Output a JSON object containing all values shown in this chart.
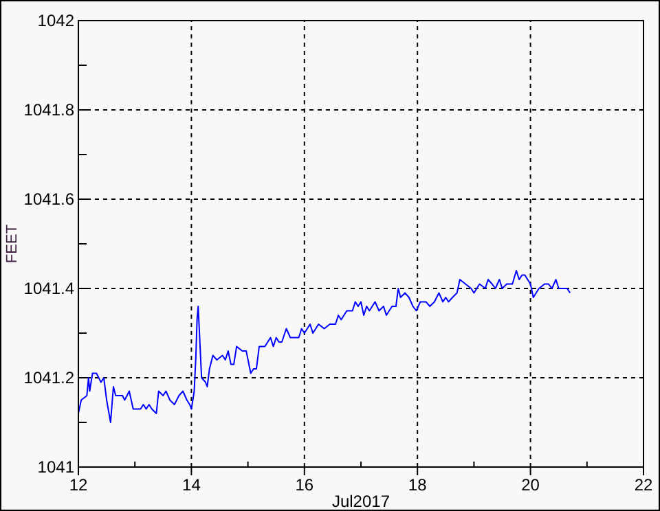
{
  "chart_data": {
    "type": "line",
    "xlabel": "Jul2017",
    "ylabel": "FEET",
    "xlim": [
      12,
      22
    ],
    "ylim": [
      1041,
      1042
    ],
    "xticks": [
      12,
      {
        "value": 13,
        "label": null
      },
      14,
      {
        "value": 15,
        "label": null
      },
      16,
      {
        "value": 17,
        "label": null
      },
      18,
      {
        "value": 19,
        "label": null
      },
      20,
      {
        "value": 21,
        "label": null
      },
      22
    ],
    "yticks": [
      1041,
      {
        "value": 1041.1,
        "label": null
      },
      1041.2,
      {
        "value": 1041.3,
        "label": null
      },
      1041.4,
      {
        "value": 1041.5,
        "label": null
      },
      1041.6,
      {
        "value": 1041.7,
        "label": null
      },
      1041.8,
      {
        "value": 1041.9,
        "label": null
      },
      1042
    ],
    "grid": true,
    "series": [
      {
        "color": "#0000ff",
        "x": [
          12.0,
          12.05,
          12.15,
          12.18,
          12.2,
          12.25,
          12.32,
          12.4,
          12.45,
          12.5,
          12.57,
          12.62,
          12.66,
          12.78,
          12.82,
          12.9,
          12.97,
          13.1,
          13.15,
          13.2,
          13.25,
          13.3,
          13.38,
          13.42,
          13.5,
          13.55,
          13.62,
          13.7,
          13.78,
          13.85,
          13.92,
          13.97,
          14.0,
          14.05,
          14.08,
          14.1,
          14.12,
          14.15,
          14.18,
          14.25,
          14.28,
          14.32,
          14.38,
          14.45,
          14.55,
          14.6,
          14.65,
          14.7,
          14.75,
          14.8,
          14.9,
          14.97,
          15.05,
          15.1,
          15.15,
          15.2,
          15.3,
          15.35,
          15.4,
          15.45,
          15.5,
          15.55,
          15.6,
          15.68,
          15.75,
          15.9,
          15.95,
          16.0,
          16.1,
          16.15,
          16.2,
          16.25,
          16.35,
          16.45,
          16.55,
          16.6,
          16.65,
          16.75,
          16.85,
          16.9,
          16.95,
          17.0,
          17.05,
          17.1,
          17.15,
          17.25,
          17.32,
          17.4,
          17.45,
          17.55,
          17.62,
          17.66,
          17.7,
          17.78,
          17.85,
          17.92,
          17.98,
          18.05,
          18.15,
          18.22,
          18.3,
          18.38,
          18.45,
          18.5,
          18.55,
          18.62,
          18.7,
          18.75,
          18.85,
          18.95,
          19.0,
          19.05,
          19.1,
          19.2,
          19.25,
          19.32,
          19.38,
          19.45,
          19.5,
          19.58,
          19.68,
          19.75,
          19.8,
          19.85,
          19.9,
          19.95,
          20.0,
          20.05,
          20.15,
          20.25,
          20.32,
          20.38,
          20.45,
          20.5,
          20.65,
          20.7
        ],
        "values": [
          1041.12,
          1041.15,
          1041.16,
          1041.2,
          1041.17,
          1041.21,
          1041.21,
          1041.19,
          1041.2,
          1041.15,
          1041.1,
          1041.18,
          1041.16,
          1041.16,
          1041.15,
          1041.17,
          1041.13,
          1041.13,
          1041.14,
          1041.13,
          1041.14,
          1041.13,
          1041.12,
          1041.17,
          1041.16,
          1041.17,
          1041.15,
          1041.14,
          1041.16,
          1041.17,
          1041.15,
          1041.14,
          1041.13,
          1041.17,
          1041.25,
          1041.33,
          1041.36,
          1041.28,
          1041.2,
          1041.19,
          1041.18,
          1041.22,
          1041.25,
          1041.24,
          1041.25,
          1041.24,
          1041.26,
          1041.23,
          1041.23,
          1041.27,
          1041.26,
          1041.26,
          1041.21,
          1041.22,
          1041.22,
          1041.27,
          1041.27,
          1041.28,
          1041.29,
          1041.27,
          1041.29,
          1041.28,
          1041.28,
          1041.31,
          1041.29,
          1041.29,
          1041.31,
          1041.3,
          1041.32,
          1041.3,
          1041.31,
          1041.32,
          1041.31,
          1041.32,
          1041.32,
          1041.34,
          1041.33,
          1041.35,
          1041.35,
          1041.37,
          1041.36,
          1041.37,
          1041.34,
          1041.36,
          1041.35,
          1041.37,
          1041.35,
          1041.36,
          1041.34,
          1041.36,
          1041.36,
          1041.4,
          1041.38,
          1041.39,
          1041.38,
          1041.36,
          1041.35,
          1041.37,
          1041.37,
          1041.36,
          1041.37,
          1041.39,
          1041.37,
          1041.38,
          1041.37,
          1041.38,
          1041.39,
          1041.42,
          1041.41,
          1041.4,
          1041.39,
          1041.4,
          1041.41,
          1041.4,
          1041.42,
          1041.41,
          1041.4,
          1041.42,
          1041.4,
          1041.41,
          1041.41,
          1041.44,
          1041.42,
          1041.43,
          1041.43,
          1041.42,
          1041.41,
          1041.38,
          1041.4,
          1041.41,
          1041.41,
          1041.4,
          1041.42,
          1041.4,
          1041.4,
          1041.39
        ]
      }
    ]
  }
}
